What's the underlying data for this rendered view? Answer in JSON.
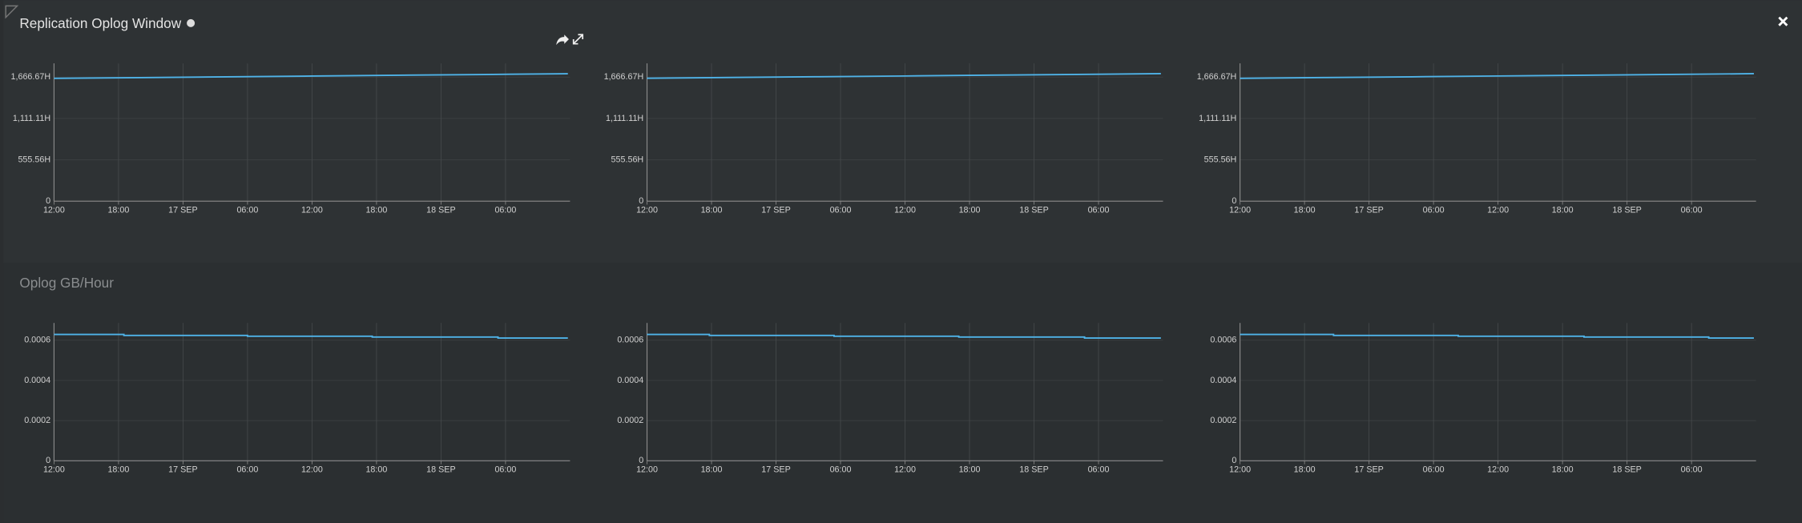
{
  "sections": [
    {
      "title": "Replication Oplog Window"
    },
    {
      "title": "Oplog GB/Hour"
    }
  ],
  "chart_data": [
    {
      "type": "line",
      "color": "#4fb3e8",
      "x": [
        0,
        8,
        16,
        24,
        32,
        40,
        47.8
      ],
      "values": [
        1650,
        1660,
        1671,
        1681,
        1692,
        1702,
        1712
      ],
      "xlim": [
        0,
        48
      ],
      "xticks": [
        {
          "value": 0,
          "label": "12:00"
        },
        {
          "value": 6,
          "label": "18:00"
        },
        {
          "value": 12,
          "label": "17 SEP"
        },
        {
          "value": 18,
          "label": "06:00"
        },
        {
          "value": 24,
          "label": "12:00"
        },
        {
          "value": 30,
          "label": "18:00"
        },
        {
          "value": 36,
          "label": "18 SEP"
        },
        {
          "value": 42,
          "label": "06:00"
        }
      ],
      "ylim": [
        0,
        1851.85
      ],
      "yticks": [
        0,
        {
          "value": 555.56,
          "label": "555.56H"
        },
        {
          "value": 1111.11,
          "label": "1,111.11H"
        },
        {
          "value": 1666.67,
          "label": "1,666.67H"
        }
      ],
      "grid": true
    },
    {
      "type": "line",
      "color": "#4fb3e8",
      "x": [
        0,
        8,
        16,
        24,
        32,
        40,
        47.8
      ],
      "values": [
        1652,
        1662,
        1672,
        1682,
        1693,
        1703,
        1713
      ],
      "xlim": [
        0,
        48
      ],
      "xticks": [
        {
          "value": 0,
          "label": "12:00"
        },
        {
          "value": 6,
          "label": "18:00"
        },
        {
          "value": 12,
          "label": "17 SEP"
        },
        {
          "value": 18,
          "label": "06:00"
        },
        {
          "value": 24,
          "label": "12:00"
        },
        {
          "value": 30,
          "label": "18:00"
        },
        {
          "value": 36,
          "label": "18 SEP"
        },
        {
          "value": 42,
          "label": "06:00"
        }
      ],
      "ylim": [
        0,
        1851.85
      ],
      "yticks": [
        0,
        {
          "value": 555.56,
          "label": "555.56H"
        },
        {
          "value": 1111.11,
          "label": "1,111.11H"
        },
        {
          "value": 1666.67,
          "label": "1,666.67H"
        }
      ],
      "grid": true
    },
    {
      "type": "line",
      "color": "#4fb3e8",
      "x": [
        0,
        8,
        16,
        24,
        32,
        40,
        47.8
      ],
      "values": [
        1651,
        1661,
        1671,
        1682,
        1692,
        1703,
        1713
      ],
      "xlim": [
        0,
        48
      ],
      "xticks": [
        {
          "value": 0,
          "label": "12:00"
        },
        {
          "value": 6,
          "label": "18:00"
        },
        {
          "value": 12,
          "label": "17 SEP"
        },
        {
          "value": 18,
          "label": "06:00"
        },
        {
          "value": 24,
          "label": "12:00"
        },
        {
          "value": 30,
          "label": "18:00"
        },
        {
          "value": 36,
          "label": "18 SEP"
        },
        {
          "value": 42,
          "label": "06:00"
        }
      ],
      "ylim": [
        0,
        1851.85
      ],
      "yticks": [
        0,
        {
          "value": 555.56,
          "label": "555.56H"
        },
        {
          "value": 1111.11,
          "label": "1,111.11H"
        },
        {
          "value": 1666.67,
          "label": "1,666.67H"
        }
      ],
      "grid": true
    },
    {
      "type": "line",
      "color": "#4fb3e8",
      "x": [
        0,
        6.5,
        6.5,
        18,
        18,
        29.6,
        29.6,
        41.3,
        41.3,
        47.8
      ],
      "values": [
        0.000629,
        0.000629,
        0.000624,
        0.000624,
        0.00062,
        0.00062,
        0.000616,
        0.000616,
        0.000611,
        0.000611
      ],
      "xlim": [
        0,
        48
      ],
      "xticks": [
        {
          "value": 0,
          "label": "12:00"
        },
        {
          "value": 6,
          "label": "18:00"
        },
        {
          "value": 12,
          "label": "17 SEP"
        },
        {
          "value": 18,
          "label": "06:00"
        },
        {
          "value": 24,
          "label": "12:00"
        },
        {
          "value": 30,
          "label": "18:00"
        },
        {
          "value": 36,
          "label": "18 SEP"
        },
        {
          "value": 42,
          "label": "06:00"
        }
      ],
      "ylim": [
        0,
        0.000686
      ],
      "yticks": [
        0,
        0.0002,
        0.0004,
        0.0006
      ],
      "grid": true
    },
    {
      "type": "line",
      "color": "#4fb3e8",
      "x": [
        0,
        5.8,
        5.8,
        17.4,
        17.4,
        29,
        29,
        40.7,
        40.7,
        47.8
      ],
      "values": [
        0.000629,
        0.000629,
        0.000624,
        0.000624,
        0.00062,
        0.00062,
        0.000616,
        0.000616,
        0.000611,
        0.000611
      ],
      "xlim": [
        0,
        48
      ],
      "xticks": [
        {
          "value": 0,
          "label": "12:00"
        },
        {
          "value": 6,
          "label": "18:00"
        },
        {
          "value": 12,
          "label": "17 SEP"
        },
        {
          "value": 18,
          "label": "06:00"
        },
        {
          "value": 24,
          "label": "12:00"
        },
        {
          "value": 30,
          "label": "18:00"
        },
        {
          "value": 36,
          "label": "18 SEP"
        },
        {
          "value": 42,
          "label": "06:00"
        }
      ],
      "ylim": [
        0,
        0.000686
      ],
      "yticks": [
        0,
        0.0002,
        0.0004,
        0.0006
      ],
      "grid": true
    },
    {
      "type": "line",
      "color": "#4fb3e8",
      "x": [
        0,
        8.7,
        8.7,
        20.3,
        20.3,
        32,
        32,
        43.6,
        43.6,
        47.8
      ],
      "values": [
        0.000629,
        0.000629,
        0.000624,
        0.000624,
        0.00062,
        0.00062,
        0.000616,
        0.000616,
        0.000611,
        0.000611
      ],
      "xlim": [
        0,
        48
      ],
      "xticks": [
        {
          "value": 0,
          "label": "12:00"
        },
        {
          "value": 6,
          "label": "18:00"
        },
        {
          "value": 12,
          "label": "17 SEP"
        },
        {
          "value": 18,
          "label": "06:00"
        },
        {
          "value": 24,
          "label": "12:00"
        },
        {
          "value": 30,
          "label": "18:00"
        },
        {
          "value": 36,
          "label": "18 SEP"
        },
        {
          "value": 42,
          "label": "06:00"
        }
      ],
      "ylim": [
        0,
        0.000686
      ],
      "yticks": [
        0,
        0.0002,
        0.0004,
        0.0006
      ],
      "grid": true
    }
  ]
}
